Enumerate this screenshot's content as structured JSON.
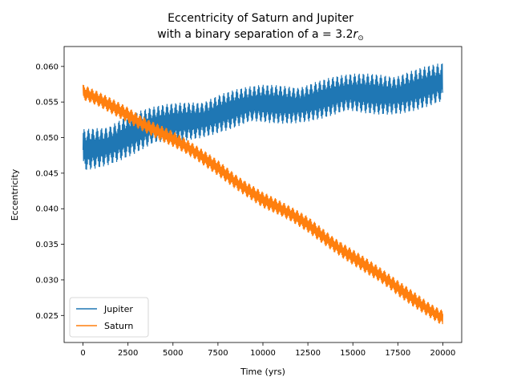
{
  "chart_data": {
    "type": "line",
    "title_line1": "Eccentricity of Saturn and Jupiter",
    "title_line2_prefix": "with a binary separation of a = 3.2",
    "title_line2_var": "r",
    "title_line2_sub": "⊙",
    "xlabel": "Time (yrs)",
    "ylabel": "Eccentricity",
    "xlim": [
      -1050,
      21050
    ],
    "ylim": [
      0.0212,
      0.0628
    ],
    "xticks": [
      0,
      2500,
      5000,
      7500,
      10000,
      12500,
      15000,
      17500,
      20000
    ],
    "yticks": [
      0.025,
      0.03,
      0.035,
      0.04,
      0.045,
      0.05,
      0.055,
      0.06
    ],
    "legend_position": "lower-left",
    "series": [
      {
        "name": "Jupiter",
        "color": "#1f77b4",
        "x": [
          0,
          2500,
          5000,
          7500,
          10000,
          12500,
          15000,
          17500,
          20000
        ],
        "y_min": [
          0.045,
          0.047,
          0.049,
          0.0505,
          0.0515,
          0.0522,
          0.0528,
          0.0533,
          0.054
        ],
        "y_max": [
          0.0515,
          0.0535,
          0.055,
          0.0565,
          0.0575,
          0.0582,
          0.059,
          0.0597,
          0.0605
        ]
      },
      {
        "name": "Saturn",
        "color": "#ff7f0e",
        "x": [
          0,
          2500,
          5000,
          7500,
          10000,
          12500,
          15000,
          17500,
          20000
        ],
        "y_min": [
          0.055,
          0.052,
          0.0485,
          0.0445,
          0.04,
          0.0365,
          0.032,
          0.0275,
          0.0235
        ],
        "y_max": [
          0.0575,
          0.0545,
          0.051,
          0.047,
          0.0425,
          0.039,
          0.0345,
          0.03,
          0.026
        ]
      }
    ]
  }
}
